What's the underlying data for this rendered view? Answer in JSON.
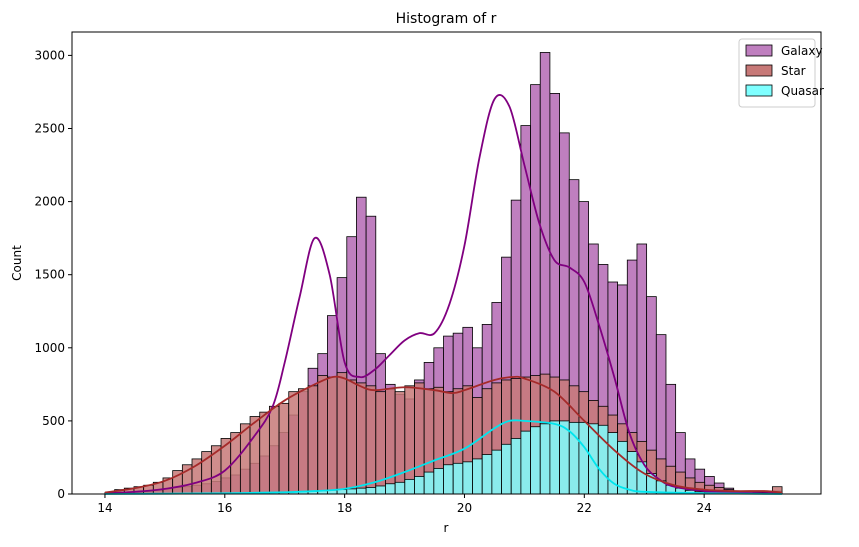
{
  "chart_data": {
    "type": "bar",
    "title": "Histogram of r",
    "xlabel": "r",
    "ylabel": "Count",
    "xlim": [
      13.45,
      25.95
    ],
    "ylim": [
      0,
      3160
    ],
    "xticks": [
      14,
      16,
      18,
      20,
      22,
      24
    ],
    "yticks": [
      0,
      500,
      1000,
      1500,
      2000,
      2500,
      3000
    ],
    "legend_position": "top-right",
    "bin_range": [
      14.0,
      25.3
    ],
    "bin_count": 70,
    "series": [
      {
        "name": "Galaxy",
        "fill": "#bf7fbf",
        "line": "#800080",
        "values": [
          0,
          2,
          5,
          10,
          15,
          25,
          35,
          45,
          50,
          60,
          70,
          85,
          110,
          130,
          170,
          210,
          260,
          330,
          420,
          540,
          700,
          860,
          960,
          1220,
          1480,
          1760,
          2030,
          1900,
          960,
          750,
          680,
          650,
          780,
          900,
          1000,
          1080,
          1100,
          1140,
          1000,
          1160,
          1310,
          1620,
          2010,
          2520,
          2800,
          3020,
          2740,
          2470,
          2150,
          2000,
          1710,
          1570,
          1450,
          1430,
          1600,
          1710,
          1350,
          1090,
          750,
          420,
          240,
          170,
          120,
          75,
          40,
          20,
          10,
          5,
          2,
          20
        ],
        "kde": [
          [
            14,
            5
          ],
          [
            14.5,
            15
          ],
          [
            15,
            35
          ],
          [
            15.5,
            75
          ],
          [
            16,
            160
          ],
          [
            16.5,
            400
          ],
          [
            16.8,
            600
          ],
          [
            17,
            900
          ],
          [
            17.25,
            1350
          ],
          [
            17.5,
            1750
          ],
          [
            17.75,
            1500
          ],
          [
            18,
            900
          ],
          [
            18.25,
            800
          ],
          [
            18.5,
            850
          ],
          [
            18.75,
            950
          ],
          [
            19,
            1050
          ],
          [
            19.25,
            1100
          ],
          [
            19.5,
            1100
          ],
          [
            19.75,
            1300
          ],
          [
            20,
            1700
          ],
          [
            20.25,
            2300
          ],
          [
            20.5,
            2700
          ],
          [
            20.75,
            2650
          ],
          [
            21,
            2250
          ],
          [
            21.25,
            1850
          ],
          [
            21.5,
            1600
          ],
          [
            21.75,
            1550
          ],
          [
            22,
            1450
          ],
          [
            22.25,
            1150
          ],
          [
            22.5,
            800
          ],
          [
            22.75,
            420
          ],
          [
            23,
            200
          ],
          [
            23.25,
            100
          ],
          [
            23.5,
            50
          ],
          [
            24,
            20
          ],
          [
            24.5,
            12
          ],
          [
            25,
            15
          ],
          [
            25.3,
            5
          ]
        ]
      },
      {
        "name": "Star",
        "fill": "#c77978",
        "line": "#a52a2a",
        "values": [
          10,
          30,
          40,
          50,
          60,
          80,
          110,
          160,
          200,
          240,
          290,
          330,
          380,
          420,
          480,
          530,
          560,
          600,
          620,
          700,
          720,
          740,
          810,
          800,
          830,
          780,
          760,
          740,
          700,
          720,
          700,
          740,
          760,
          720,
          730,
          700,
          720,
          740,
          660,
          720,
          760,
          780,
          790,
          800,
          810,
          820,
          800,
          780,
          740,
          700,
          640,
          600,
          540,
          480,
          420,
          360,
          300,
          240,
          190,
          150,
          110,
          80,
          60,
          45,
          30,
          20,
          15,
          10,
          10,
          50
        ],
        "kde": [
          [
            14,
            10
          ],
          [
            14.5,
            40
          ],
          [
            15,
            90
          ],
          [
            15.5,
            190
          ],
          [
            16,
            330
          ],
          [
            16.5,
            490
          ],
          [
            17,
            640
          ],
          [
            17.5,
            750
          ],
          [
            17.8,
            800
          ],
          [
            18,
            790
          ],
          [
            18.25,
            740
          ],
          [
            18.5,
            710
          ],
          [
            19,
            730
          ],
          [
            19.5,
            710
          ],
          [
            19.8,
            690
          ],
          [
            20,
            710
          ],
          [
            20.5,
            780
          ],
          [
            20.8,
            800
          ],
          [
            21,
            790
          ],
          [
            21.5,
            700
          ],
          [
            22,
            500
          ],
          [
            22.5,
            300
          ],
          [
            23,
            140
          ],
          [
            23.5,
            60
          ],
          [
            24,
            30
          ],
          [
            24.5,
            20
          ],
          [
            25,
            20
          ],
          [
            25.3,
            10
          ]
        ]
      },
      {
        "name": "Quasar",
        "fill": "#7fffff",
        "line": "#00e5ee",
        "values": [
          0,
          0,
          0,
          0,
          0,
          0,
          0,
          2,
          2,
          3,
          3,
          4,
          5,
          5,
          6,
          6,
          8,
          10,
          12,
          14,
          16,
          18,
          22,
          26,
          30,
          35,
          40,
          45,
          55,
          70,
          80,
          100,
          120,
          150,
          175,
          200,
          210,
          220,
          240,
          270,
          300,
          340,
          380,
          430,
          460,
          480,
          500,
          500,
          490,
          490,
          480,
          470,
          420,
          360,
          290,
          220,
          140,
          90,
          60,
          40,
          25,
          15,
          10,
          8,
          5,
          3,
          2,
          1,
          1,
          1
        ],
        "kde": [
          [
            14,
            0
          ],
          [
            15,
            2
          ],
          [
            16,
            5
          ],
          [
            17,
            12
          ],
          [
            17.5,
            20
          ],
          [
            18,
            35
          ],
          [
            18.5,
            80
          ],
          [
            19,
            150
          ],
          [
            19.5,
            230
          ],
          [
            20,
            310
          ],
          [
            20.5,
            450
          ],
          [
            20.75,
            500
          ],
          [
            21,
            500
          ],
          [
            21.5,
            480
          ],
          [
            21.75,
            430
          ],
          [
            22,
            320
          ],
          [
            22.25,
            170
          ],
          [
            22.5,
            70
          ],
          [
            22.75,
            30
          ],
          [
            23,
            15
          ],
          [
            24,
            5
          ],
          [
            25.3,
            0
          ]
        ]
      }
    ]
  }
}
